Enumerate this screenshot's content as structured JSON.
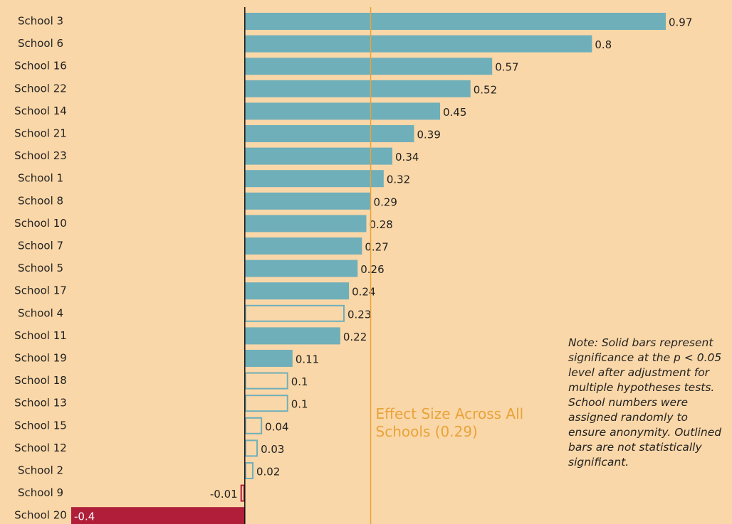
{
  "chart_data": {
    "type": "hbar",
    "categories": [
      "School 3",
      "School 6",
      "School 16",
      "School 22",
      "School 14",
      "School 21",
      "School 23",
      "School 1",
      "School 8",
      "School 10",
      "School 7",
      "School 5",
      "School 17",
      "School 4",
      "School 11",
      "School 19",
      "School 18",
      "School 13",
      "School 15",
      "School 12",
      "School 2",
      "School 9",
      "School 20"
    ],
    "values": [
      0.97,
      0.8,
      0.57,
      0.52,
      0.45,
      0.39,
      0.34,
      0.32,
      0.29,
      0.28,
      0.27,
      0.26,
      0.24,
      0.23,
      0.22,
      0.11,
      0.1,
      0.1,
      0.04,
      0.03,
      0.02,
      -0.01,
      -0.4
    ],
    "significant": [
      true,
      true,
      true,
      true,
      true,
      true,
      true,
      true,
      true,
      true,
      true,
      true,
      true,
      false,
      true,
      true,
      false,
      false,
      false,
      false,
      false,
      false,
      true
    ],
    "color_positive": "#6fafba",
    "color_negative": "#b01e3a",
    "xlim": [
      -0.4,
      0.97
    ],
    "reference": {
      "value": 0.29,
      "label": "Effect Size Across All Schools (0.29)",
      "color": "#e8a33a"
    },
    "note": "Note: Solid bars represent significance at the p < 0.05 level after adjustment for multiple hypotheses tests. School numbers were assigned randomly to ensure anonymity. Outlined bars are not statistically significant."
  }
}
